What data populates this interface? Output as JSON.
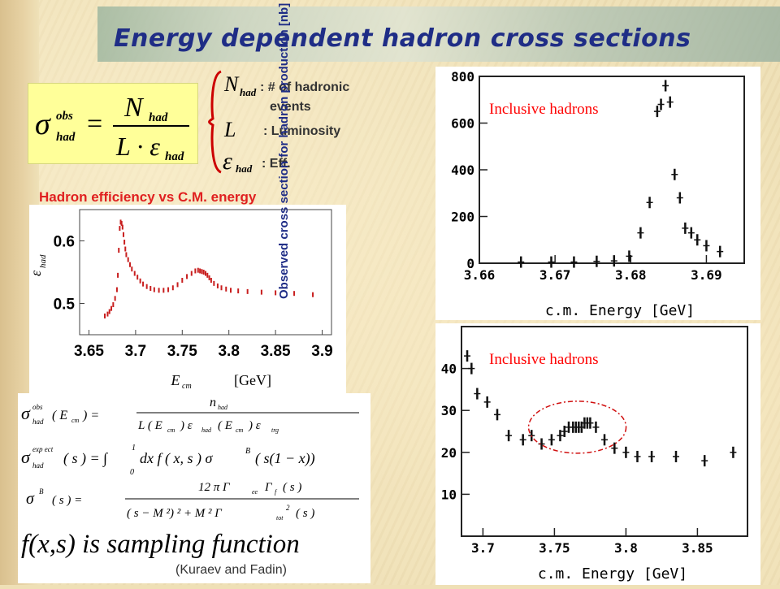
{
  "title": "Energy dependent hadron cross sections",
  "definition": {
    "formula_lhs": "σ",
    "lhs_sup": "obs",
    "lhs_sub": "had",
    "numerator": "N",
    "numerator_sub": "had",
    "denominator": "L · ε",
    "denominator_sub": "had",
    "legend": [
      {
        "symbol": "N",
        "sub": "had",
        "text": ": # of hadronic",
        "text2": "events"
      },
      {
        "symbol": "L",
        "sub": "",
        "text": ": Luminosity",
        "text2": ""
      },
      {
        "symbol": "ε",
        "sub": "had",
        "text": ": Eff.",
        "text2": ""
      }
    ]
  },
  "efficiency_title": "Hadron efficiency vs C.M. energy",
  "right_ylabel": "Observed cross section for hadron production [nb]",
  "formulas": [
    "σ_had^obs (E_cm) = n_had / ( L(E_cm) ε_had(E_cm) ε_trg )",
    "σ_had^expect (s) = ∫_0^1 dx f(x,s) σ^B(s(1−x))",
    "σ^B(s) = 12 π Γ_ee Γ_f(s) / ( (s − M²)² + M² Γ_tot²(s) )",
    "f(x,s) is sampling function"
  ],
  "citation": "(Kuraev and Fadin)",
  "chart_data": [
    {
      "type": "scatter",
      "title": "Hadron efficiency vs C.M. energy",
      "xlabel": "E_cm [GeV]",
      "ylabel": "ε_had",
      "xlim": [
        3.64,
        3.91
      ],
      "ylim": [
        0.45,
        0.65
      ],
      "xticks": [
        "3.65",
        "3.7",
        "3.75",
        "3.8",
        "3.85",
        "3.9"
      ],
      "yticks": [
        "0.5",
        "0.6"
      ],
      "x": [
        3.667,
        3.67,
        3.672,
        3.674,
        3.676,
        3.678,
        3.68,
        3.681,
        3.682,
        3.683,
        3.684,
        3.685,
        3.686,
        3.687,
        3.688,
        3.689,
        3.69,
        3.692,
        3.694,
        3.696,
        3.699,
        3.702,
        3.705,
        3.708,
        3.712,
        3.716,
        3.72,
        3.725,
        3.73,
        3.735,
        3.74,
        3.745,
        3.75,
        3.755,
        3.76,
        3.764,
        3.767,
        3.769,
        3.771,
        3.773,
        3.775,
        3.777,
        3.779,
        3.781,
        3.784,
        3.788,
        3.792,
        3.797,
        3.802,
        3.81,
        3.82,
        3.835,
        3.85,
        3.87,
        3.89
      ],
      "y": [
        0.48,
        0.483,
        0.487,
        0.492,
        0.498,
        0.508,
        0.522,
        0.545,
        0.585,
        0.62,
        0.63,
        0.628,
        0.622,
        0.61,
        0.598,
        0.587,
        0.578,
        0.57,
        0.562,
        0.555,
        0.548,
        0.542,
        0.536,
        0.531,
        0.527,
        0.524,
        0.522,
        0.521,
        0.521,
        0.522,
        0.525,
        0.53,
        0.537,
        0.543,
        0.548,
        0.552,
        0.553,
        0.552,
        0.551,
        0.55,
        0.548,
        0.545,
        0.541,
        0.537,
        0.532,
        0.528,
        0.525,
        0.523,
        0.521,
        0.52,
        0.519,
        0.518,
        0.517,
        0.516,
        0.514
      ]
    },
    {
      "type": "scatter",
      "legend": "Inclusive hadrons",
      "xlabel": "c.m. Energy [GeV]",
      "xlim": [
        3.66,
        3.695
      ],
      "ylim": [
        0,
        800
      ],
      "xticks": [
        "3.66",
        "3.67",
        "3.68",
        "3.69"
      ],
      "yticks": [
        "0",
        "200",
        "400",
        "600",
        "800"
      ],
      "x": [
        3.6655,
        3.6695,
        3.6725,
        3.6755,
        3.6778,
        3.6798,
        3.6813,
        3.6825,
        3.6835,
        3.684,
        3.6846,
        3.6852,
        3.6858,
        3.6865,
        3.6872,
        3.688,
        3.6888,
        3.69,
        3.6918
      ],
      "y": [
        5,
        5,
        5,
        8,
        10,
        30,
        130,
        260,
        650,
        680,
        760,
        690,
        380,
        280,
        150,
        130,
        100,
        75,
        50
      ]
    },
    {
      "type": "scatter",
      "legend": "Inclusive hadrons",
      "xlabel": "c.m. Energy [GeV]",
      "xlim": [
        3.685,
        3.885
      ],
      "ylim": [
        0,
        50
      ],
      "xticks": [
        "3.7",
        "3.75",
        "3.8",
        "3.85"
      ],
      "yticks": [
        "10",
        "20",
        "30",
        "40"
      ],
      "x": [
        3.689,
        3.692,
        3.696,
        3.703,
        3.71,
        3.718,
        3.728,
        3.734,
        3.741,
        3.748,
        3.754,
        3.757,
        3.76,
        3.763,
        3.765,
        3.767,
        3.769,
        3.771,
        3.773,
        3.775,
        3.779,
        3.785,
        3.792,
        3.8,
        3.808,
        3.818,
        3.835,
        3.855,
        3.875
      ],
      "y": [
        43,
        40,
        34,
        32,
        29,
        24,
        23,
        24,
        22,
        23,
        24,
        25,
        26,
        26,
        26,
        26,
        26,
        27,
        27,
        27,
        26,
        23,
        21,
        20,
        19,
        19,
        19,
        18,
        20
      ]
    }
  ]
}
